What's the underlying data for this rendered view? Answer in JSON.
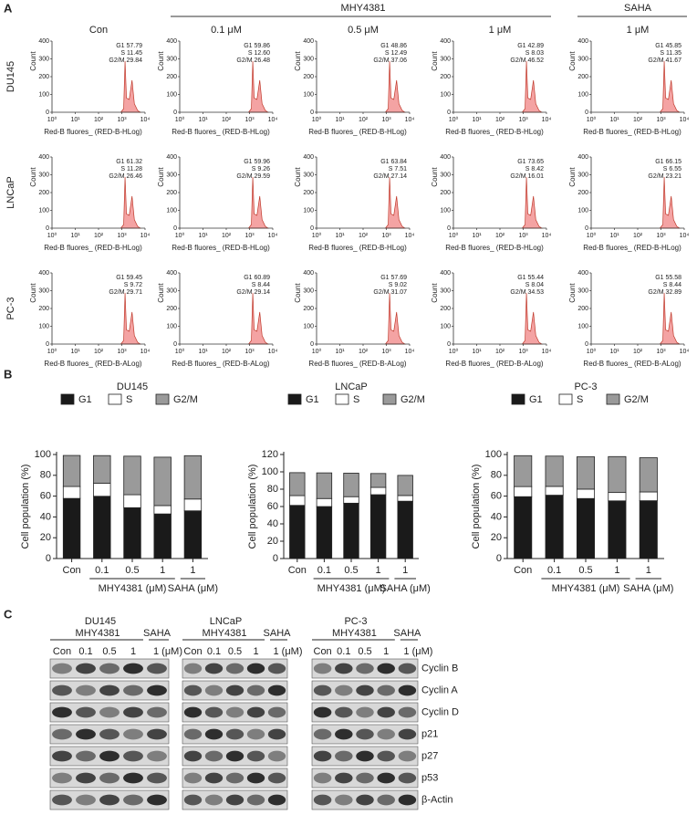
{
  "panel_labels": [
    "A",
    "B",
    "C"
  ],
  "panel_a": {
    "groups": [
      "MHY4381",
      "SAHA"
    ],
    "columns": [
      "Con",
      "0.1 μM",
      "0.5 μM",
      "1 μM",
      "1 μM"
    ],
    "y_label": "Count",
    "ylim": [
      0,
      400
    ],
    "yticks": [
      0,
      100,
      200,
      300,
      400
    ],
    "x_scale": "log",
    "xlim": [
      1,
      10000
    ],
    "xticks": [
      {
        "value": 1,
        "label": "10⁰"
      },
      {
        "value": 10,
        "label": "10¹"
      },
      {
        "value": 100,
        "label": "10²"
      },
      {
        "value": 1000,
        "label": "10³"
      },
      {
        "value": 10000,
        "label": "10⁴"
      }
    ],
    "rows": [
      {
        "label": "DU145",
        "x_label": "Red-B fluores_ (RED-B-HLog)",
        "plots": [
          {
            "stats": [
              "G1 57.79",
              "S 11.45",
              "G2/M 29.84"
            ]
          },
          {
            "stats": [
              "G1 59.86",
              "S 12.60",
              "G2/M 26.48"
            ]
          },
          {
            "stats": [
              "G1 48.86",
              "S 12.49",
              "G2/M 37.06"
            ]
          },
          {
            "stats": [
              "G1 42.89",
              "S 8.03",
              "G2/M 46.52"
            ]
          },
          {
            "stats": [
              "G1 45.85",
              "S 11.35",
              "G2/M 41.67"
            ]
          }
        ]
      },
      {
        "label": "LNCaP",
        "x_label": "Red-B fluores_ (RED-B-HLog)",
        "plots": [
          {
            "stats": [
              "G1 61.32",
              "S 11.28",
              "G2/M 26.46"
            ]
          },
          {
            "stats": [
              "G1 59.96",
              "S 9.26",
              "G2/M 29.59"
            ]
          },
          {
            "stats": [
              "G1 63.84",
              "S 7.51",
              "G2/M 27.14"
            ]
          },
          {
            "stats": [
              "G1 73.65",
              "S 8.42",
              "G2/M 16.01"
            ]
          },
          {
            "stats": [
              "G1 66.15",
              "S 6.55",
              "G2/M 23.21"
            ]
          }
        ]
      },
      {
        "label": "PC-3",
        "x_label": "Red-B fluores_ (RED-B-ALog)",
        "plots": [
          {
            "stats": [
              "G1 59.45",
              "S 9.72",
              "G2/M 29.71"
            ]
          },
          {
            "stats": [
              "G1 60.89",
              "S 8.44",
              "G2/M 29.14"
            ]
          },
          {
            "stats": [
              "G1 57.69",
              "S 9.02",
              "G2/M 31.07"
            ]
          },
          {
            "stats": [
              "G1 55.44",
              "S 8.04",
              "G2/M 34.53"
            ]
          },
          {
            "stats": [
              "G1 55.58",
              "S 8.44",
              "G2/M 32.89"
            ]
          }
        ]
      }
    ]
  },
  "chart_data": [
    {
      "type": "bar",
      "stacked": true,
      "title": "DU145",
      "y_label": "Cell population (%)",
      "categories": [
        "Con",
        "0.1",
        "0.5",
        "1",
        "1"
      ],
      "category_groups": [
        "MHY4381 (μM)",
        "SAHA (μM)"
      ],
      "ylim": [
        0,
        100
      ],
      "yticks": [
        0,
        20,
        40,
        60,
        80,
        100
      ],
      "series": [
        {
          "name": "G1",
          "color": "#1a1a1a",
          "values": [
            57.79,
            59.86,
            48.86,
            42.89,
            45.85
          ]
        },
        {
          "name": "S",
          "color": "#ffffff",
          "values": [
            11.45,
            12.6,
            12.49,
            8.03,
            11.35
          ]
        },
        {
          "name": "G2/M",
          "color": "#9a9a9a",
          "values": [
            29.84,
            26.48,
            37.06,
            46.52,
            41.67
          ]
        }
      ]
    },
    {
      "type": "bar",
      "stacked": true,
      "title": "LNCaP",
      "y_label": "Cell population (%)",
      "categories": [
        "Con",
        "0.1",
        "0.5",
        "1",
        "1"
      ],
      "category_groups": [
        "MHY4381 (μM)",
        "SAHA (μM)"
      ],
      "ylim": [
        0,
        120
      ],
      "yticks": [
        0,
        20,
        40,
        60,
        80,
        100,
        120
      ],
      "series": [
        {
          "name": "G1",
          "color": "#1a1a1a",
          "values": [
            61.32,
            59.96,
            63.84,
            73.65,
            66.15
          ]
        },
        {
          "name": "S",
          "color": "#ffffff",
          "values": [
            11.28,
            9.26,
            7.51,
            8.42,
            6.55
          ]
        },
        {
          "name": "G2/M",
          "color": "#9a9a9a",
          "values": [
            26.46,
            29.59,
            27.14,
            16.01,
            23.21
          ]
        }
      ]
    },
    {
      "type": "bar",
      "stacked": true,
      "title": "PC-3",
      "y_label": "Cell population (%)",
      "categories": [
        "Con",
        "0.1",
        "0.5",
        "1",
        "1"
      ],
      "category_groups": [
        "MHY4381 (μM)",
        "SAHA (μM)"
      ],
      "ylim": [
        0,
        100
      ],
      "yticks": [
        0,
        20,
        40,
        60,
        80,
        100
      ],
      "series": [
        {
          "name": "G1",
          "color": "#1a1a1a",
          "values": [
            59.45,
            60.89,
            57.69,
            55.44,
            55.58
          ]
        },
        {
          "name": "S",
          "color": "#ffffff",
          "values": [
            9.72,
            8.44,
            9.02,
            8.04,
            8.44
          ]
        },
        {
          "name": "G2/M",
          "color": "#9a9a9a",
          "values": [
            29.71,
            29.14,
            31.07,
            34.53,
            32.89
          ]
        }
      ]
    }
  ],
  "panel_c": {
    "cell_lines": [
      {
        "name": "DU145",
        "groups": [
          "MHY4381",
          "SAHA"
        ],
        "lanes": [
          "Con",
          "0.1",
          "0.5",
          "1",
          "1 (μM)"
        ]
      },
      {
        "name": "LNCaP",
        "groups": [
          "MHY4381",
          "SAHA"
        ],
        "lanes": [
          "Con",
          "0.1",
          "0.5",
          "1",
          "1 (μM)"
        ]
      },
      {
        "name": "PC-3",
        "groups": [
          "MHY4381",
          "SAHA"
        ],
        "lanes": [
          "Con",
          "0.1",
          "0.5",
          "1",
          "1 (μM)"
        ]
      }
    ],
    "proteins": [
      "Cyclin B",
      "Cyclin A",
      "Cyclin D",
      "p21",
      "p27",
      "p53",
      "β-Actin"
    ]
  }
}
